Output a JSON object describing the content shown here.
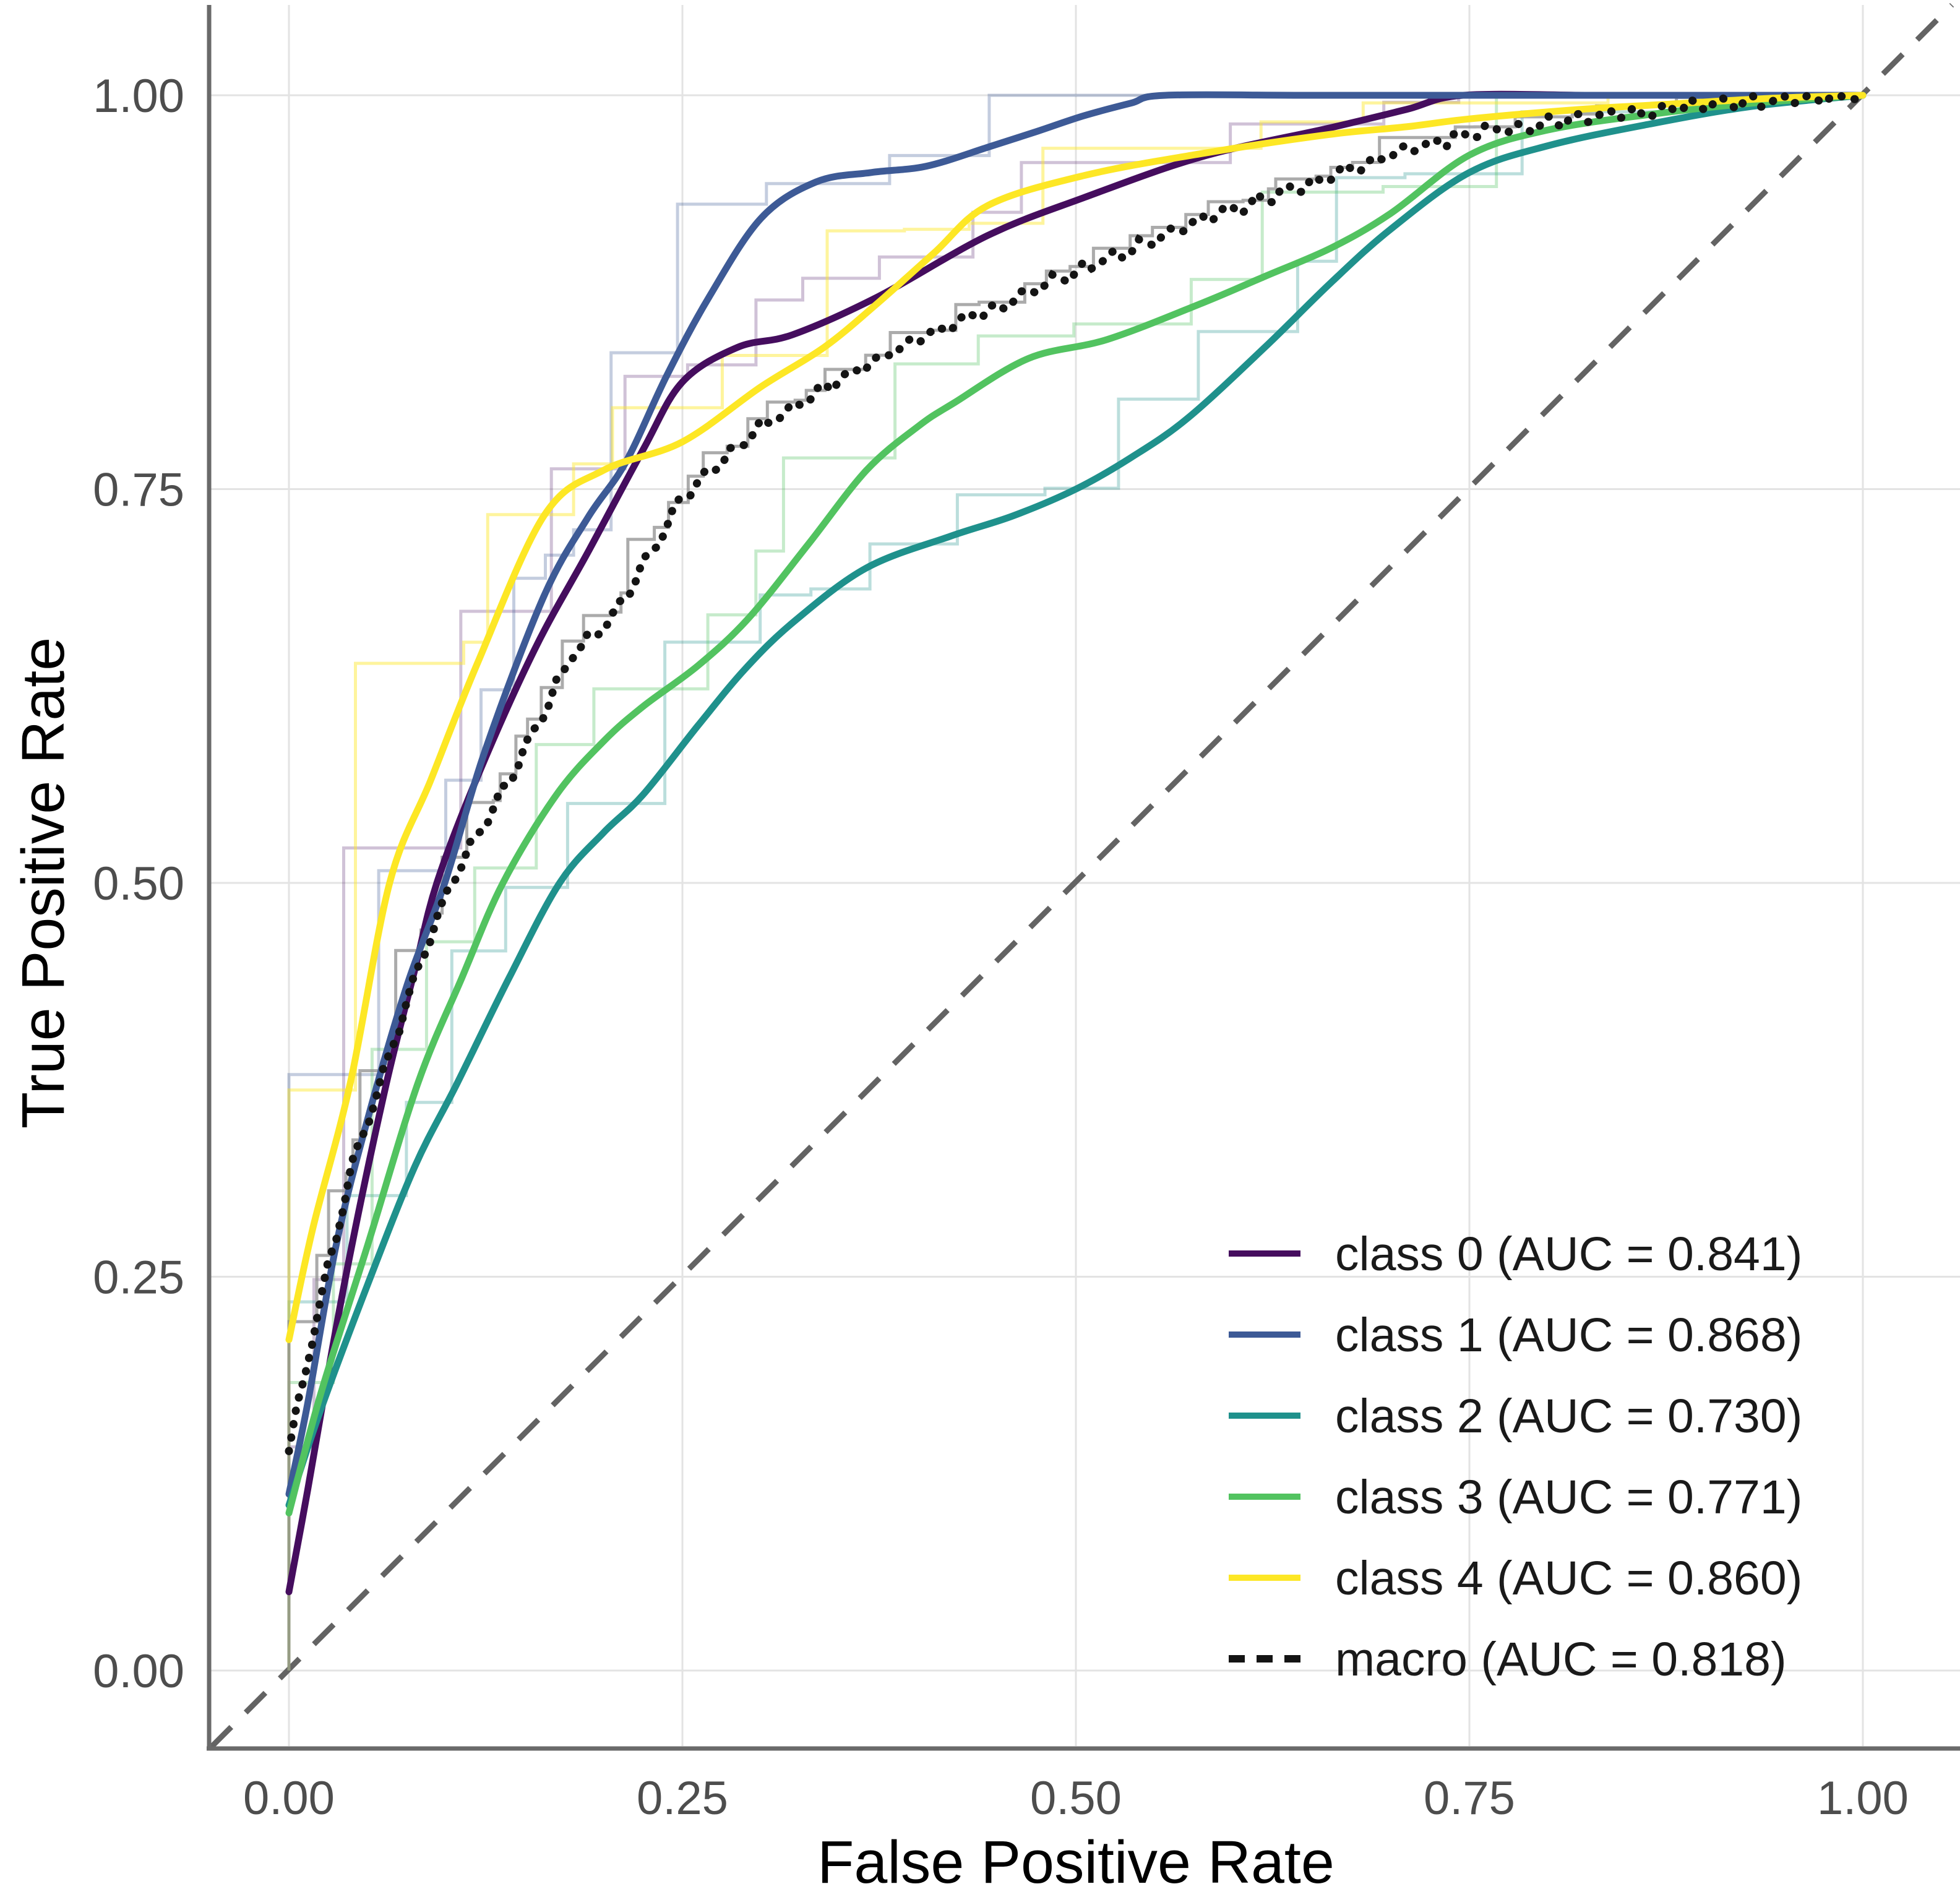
{
  "chart_data": {
    "type": "line",
    "title": "",
    "xlabel": "False Positive Rate",
    "ylabel": "True Positive Rate",
    "xlim": [
      0,
      1
    ],
    "ylim": [
      0,
      1
    ],
    "grid": true,
    "x_tick_values": [
      0,
      0.25,
      0.5,
      0.75,
      1.0
    ],
    "y_tick_values": [
      0,
      0.25,
      0.5,
      0.75,
      1.0
    ],
    "x_tick_labels": [
      "0.00",
      "0.25",
      "0.50",
      "0.75",
      "1.00"
    ],
    "y_tick_labels": [
      "0.00",
      "0.25",
      "0.50",
      "0.75",
      "1.00"
    ],
    "legend_position": "inside-bottom-right",
    "reference_line": {
      "name": "chance-diagonal",
      "style": "dashed",
      "color": "#636363",
      "from": [
        0,
        0
      ],
      "to": [
        1,
        1
      ]
    },
    "series": [
      {
        "id": "class0",
        "label": "class 0 (AUC = 0.841)",
        "auc": 0.841,
        "color": "#450d5e",
        "style": "solid",
        "step_seed": 7,
        "step_n": 24,
        "step_opacity": 0.25,
        "points": [
          [
            0,
            0.05
          ],
          [
            0.012,
            0.115
          ],
          [
            0.025,
            0.19
          ],
          [
            0.04,
            0.27
          ],
          [
            0.062,
            0.373
          ],
          [
            0.08,
            0.445
          ],
          [
            0.094,
            0.5
          ],
          [
            0.12,
            0.568
          ],
          [
            0.156,
            0.648
          ],
          [
            0.19,
            0.71
          ],
          [
            0.225,
            0.775
          ],
          [
            0.25,
            0.818
          ],
          [
            0.285,
            0.84
          ],
          [
            0.32,
            0.848
          ],
          [
            0.374,
            0.872
          ],
          [
            0.444,
            0.911
          ],
          [
            0.505,
            0.935
          ],
          [
            0.58,
            0.961
          ],
          [
            0.66,
            0.979
          ],
          [
            0.71,
            0.991
          ],
          [
            0.746,
            1
          ],
          [
            0.83,
            1
          ],
          [
            0.92,
            1
          ],
          [
            1,
            1
          ]
        ]
      },
      {
        "id": "class1",
        "label": "class 1 (AUC = 0.868)",
        "auc": 0.868,
        "color": "#3d5a96",
        "style": "solid",
        "step_seed": 13,
        "step_n": 22,
        "step_opacity": 0.3,
        "points": [
          [
            0,
            0.112
          ],
          [
            0.012,
            0.17
          ],
          [
            0.03,
            0.27
          ],
          [
            0.05,
            0.35
          ],
          [
            0.075,
            0.435
          ],
          [
            0.099,
            0.5
          ],
          [
            0.125,
            0.585
          ],
          [
            0.162,
            0.682
          ],
          [
            0.19,
            0.732
          ],
          [
            0.214,
            0.767
          ],
          [
            0.24,
            0.822
          ],
          [
            0.267,
            0.872
          ],
          [
            0.3,
            0.922
          ],
          [
            0.335,
            0.945
          ],
          [
            0.37,
            0.951
          ],
          [
            0.405,
            0.955
          ],
          [
            0.444,
            0.967
          ],
          [
            0.475,
            0.977
          ],
          [
            0.505,
            0.987
          ],
          [
            0.535,
            0.995
          ],
          [
            0.557,
            1
          ],
          [
            0.65,
            1
          ],
          [
            0.8,
            1
          ],
          [
            1,
            1
          ]
        ]
      },
      {
        "id": "class2",
        "label": "class 2 (AUC = 0.730)",
        "auc": 0.73,
        "color": "#1f918c",
        "style": "solid",
        "step_seed": 21,
        "step_n": 26,
        "step_opacity": 0.3,
        "points": [
          [
            0,
            0.105
          ],
          [
            0.02,
            0.165
          ],
          [
            0.05,
            0.245
          ],
          [
            0.08,
            0.32
          ],
          [
            0.107,
            0.373
          ],
          [
            0.14,
            0.44
          ],
          [
            0.172,
            0.5
          ],
          [
            0.2,
            0.532
          ],
          [
            0.225,
            0.556
          ],
          [
            0.26,
            0.6
          ],
          [
            0.29,
            0.636
          ],
          [
            0.321,
            0.666
          ],
          [
            0.367,
            0.7
          ],
          [
            0.42,
            0.72
          ],
          [
            0.46,
            0.733
          ],
          [
            0.5,
            0.75
          ],
          [
            0.535,
            0.77
          ],
          [
            0.571,
            0.795
          ],
          [
            0.62,
            0.84
          ],
          [
            0.662,
            0.881
          ],
          [
            0.7,
            0.915
          ],
          [
            0.75,
            0.951
          ],
          [
            0.8,
            0.968
          ],
          [
            0.866,
            0.982
          ],
          [
            0.93,
            0.993
          ],
          [
            1,
            1
          ]
        ]
      },
      {
        "id": "class3",
        "label": "class 3 (AUC = 0.771)",
        "auc": 0.771,
        "color": "#52c360",
        "style": "solid",
        "step_seed": 29,
        "step_n": 24,
        "step_opacity": 0.33,
        "points": [
          [
            0,
            0.1
          ],
          [
            0.02,
            0.175
          ],
          [
            0.05,
            0.27
          ],
          [
            0.082,
            0.373
          ],
          [
            0.11,
            0.44
          ],
          [
            0.136,
            0.5
          ],
          [
            0.17,
            0.556
          ],
          [
            0.2,
            0.59
          ],
          [
            0.225,
            0.612
          ],
          [
            0.26,
            0.638
          ],
          [
            0.292,
            0.668
          ],
          [
            0.33,
            0.715
          ],
          [
            0.367,
            0.762
          ],
          [
            0.4,
            0.79
          ],
          [
            0.423,
            0.805
          ],
          [
            0.47,
            0.833
          ],
          [
            0.52,
            0.845
          ],
          [
            0.58,
            0.868
          ],
          [
            0.62,
            0.885
          ],
          [
            0.662,
            0.903
          ],
          [
            0.7,
            0.925
          ],
          [
            0.75,
            0.962
          ],
          [
            0.8,
            0.978
          ],
          [
            0.866,
            0.988
          ],
          [
            0.93,
            0.995
          ],
          [
            1,
            1
          ]
        ]
      },
      {
        "id": "class4",
        "label": "class 4 (AUC = 0.860)",
        "auc": 0.86,
        "color": "#fde725",
        "style": "solid",
        "step_seed": 37,
        "step_n": 22,
        "step_opacity": 0.45,
        "points": [
          [
            0,
            0.21
          ],
          [
            0.015,
            0.28
          ],
          [
            0.039,
            0.373
          ],
          [
            0.064,
            0.5
          ],
          [
            0.09,
            0.565
          ],
          [
            0.12,
            0.64
          ],
          [
            0.162,
            0.733
          ],
          [
            0.2,
            0.762
          ],
          [
            0.25,
            0.78
          ],
          [
            0.3,
            0.815
          ],
          [
            0.34,
            0.84
          ],
          [
            0.374,
            0.868
          ],
          [
            0.41,
            0.9
          ],
          [
            0.444,
            0.93
          ],
          [
            0.505,
            0.949
          ],
          [
            0.58,
            0.963
          ],
          [
            0.66,
            0.975
          ],
          [
            0.71,
            0.98
          ],
          [
            0.75,
            0.985
          ],
          [
            0.82,
            0.991
          ],
          [
            0.87,
            0.994
          ],
          [
            0.94,
            0.998
          ],
          [
            1,
            1
          ]
        ]
      },
      {
        "id": "macro",
        "label": "macro (AUC = 0.818)",
        "auc": 0.818,
        "color": "#141414",
        "style": "dotted",
        "step_seed": 43,
        "step_n": 90,
        "step_opacity": 0.75,
        "step_color": "#8f8f8f",
        "points": [
          [
            0,
            0.14
          ],
          [
            0.02,
            0.235
          ],
          [
            0.04,
            0.32
          ],
          [
            0.058,
            0.373
          ],
          [
            0.08,
            0.44
          ],
          [
            0.103,
            0.5
          ],
          [
            0.14,
            0.565
          ],
          [
            0.18,
            0.645
          ],
          [
            0.206,
            0.668
          ],
          [
            0.25,
            0.745
          ],
          [
            0.3,
            0.79
          ],
          [
            0.35,
            0.82
          ],
          [
            0.41,
            0.85
          ],
          [
            0.455,
            0.868
          ],
          [
            0.505,
            0.89
          ],
          [
            0.58,
            0.921
          ],
          [
            0.66,
            0.947
          ],
          [
            0.71,
            0.966
          ],
          [
            0.75,
            0.975
          ],
          [
            0.83,
            0.987
          ],
          [
            0.9,
            0.994
          ],
          [
            1,
            1
          ]
        ]
      }
    ],
    "styling": {
      "gridline_color": "#e3e3e3",
      "spine_color": "#6a6a6a",
      "tick_label_color": "#4d4d4d",
      "axis_title_color": "#000000",
      "legend_text_color": "#1a1a1a"
    }
  }
}
